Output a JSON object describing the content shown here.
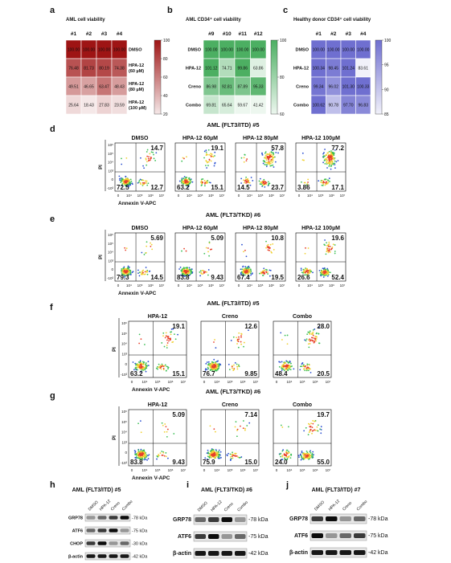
{
  "heatmaps": [
    {
      "letter": "a",
      "title": "AML  cell viability",
      "columns": [
        "#1",
        "#2",
        "#3",
        "#4"
      ],
      "row_labels": [
        [
          "DMSO"
        ],
        [
          "HPA-12",
          "(60 µM)"
        ],
        [
          "HPA-12",
          "(80 µM)"
        ],
        [
          "HPA-12",
          "(100 µM)"
        ]
      ],
      "cells": [
        [
          "100.00",
          "100.00",
          "100.00",
          "100.00"
        ],
        [
          "76.48",
          "81.73",
          "80.19",
          "74.38"
        ],
        [
          "49.51",
          "46.65",
          "63.47",
          "48.43"
        ],
        [
          "25.64",
          "18.43",
          "27.83",
          "23.59"
        ]
      ],
      "colorbar_ticks": [
        "100",
        "80",
        "60",
        "40",
        "20"
      ],
      "color": "#9e1414"
    },
    {
      "letter": "b",
      "title": "AML  CD34⁺ cell viability",
      "columns": [
        "#9",
        "#10",
        "#11",
        "#12"
      ],
      "row_labels": [
        [
          "DMSO"
        ],
        [
          "HPA-12"
        ],
        [
          "Creno"
        ],
        [
          "Combo"
        ]
      ],
      "cells": [
        [
          "100.00",
          "100.00",
          "100.00",
          "100.00"
        ],
        [
          "101.12",
          "74.71",
          "99.86",
          "63.86"
        ],
        [
          "86.98",
          "92.81",
          "87.89",
          "95.33"
        ],
        [
          "69.81",
          "65.64",
          "59.67",
          "41.42"
        ]
      ],
      "colorbar_ticks": [
        "100",
        "80",
        "60"
      ],
      "color": "#4caf62"
    },
    {
      "letter": "c",
      "title": "Healthy donor  CD34⁺ cell viability",
      "columns": [
        "#1",
        "#2",
        "#3",
        "#4"
      ],
      "row_labels": [
        [
          "DMSO"
        ],
        [
          "HPA-12"
        ],
        [
          "Creno"
        ],
        [
          "Combo"
        ]
      ],
      "cells": [
        [
          "100.00",
          "100.00",
          "100.00",
          "100.00"
        ],
        [
          "100.34",
          "98.45",
          "101.24",
          "83.61"
        ],
        [
          "99.34",
          "96.02",
          "101.30",
          "100.33"
        ],
        [
          "100.62",
          "90.78",
          "97.70",
          "96.83"
        ]
      ],
      "colorbar_ticks": [
        "100",
        "95",
        "90",
        "85"
      ],
      "color": "#6f6fd0"
    }
  ],
  "flow_panels": [
    {
      "letter": "d",
      "title": "AML (FLT3/ITD) #5",
      "y_label": "PI",
      "x_label": "Annexin V-APC",
      "y_ticks": [
        "10⁶",
        "10⁵",
        "10⁴",
        "10³",
        "0",
        "-10³"
      ],
      "x_ticks": [
        "0",
        "10⁴",
        "10⁵",
        "10⁶",
        "10⁷"
      ],
      "plots": [
        {
          "title": "DMSO",
          "upper_right": "14.7",
          "lower_left": "72.5",
          "lower_right": "12.7"
        },
        {
          "title": "HPA-12 60µM",
          "upper_right": "19.1",
          "lower_left": "63.2",
          "lower_right": "15.1"
        },
        {
          "title": "HPA-12 80µM",
          "upper_right": "57.8",
          "lower_left": "14.5",
          "lower_right": "23.7"
        },
        {
          "title": "HPA-12 100µM",
          "upper_right": "77.2",
          "lower_left": "3.86",
          "lower_right": "17.1"
        }
      ]
    },
    {
      "letter": "e",
      "title": "AML (FLT3/TKD) #6",
      "y_label": "PI",
      "x_label": "Annexin V-APC",
      "y_ticks": [
        "10⁶",
        "10⁵",
        "10⁴",
        "10³",
        "0",
        "-10³"
      ],
      "x_ticks": [
        "0",
        "10⁴",
        "10⁵",
        "10⁶",
        "10⁷"
      ],
      "plots": [
        {
          "title": "DMSO",
          "upper_right": "5.69",
          "lower_left": "79.3",
          "lower_right": "14.5"
        },
        {
          "title": "HPA-12 60µM",
          "upper_right": "5.09",
          "lower_left": "83.8",
          "lower_right": "9.43"
        },
        {
          "title": "HPA-12 80µM",
          "upper_right": "10.8",
          "lower_left": "67.4",
          "lower_right": "19.5"
        },
        {
          "title": "HPA-12 100µM",
          "upper_right": "19.6",
          "lower_left": "26.6",
          "lower_right": "52.4"
        }
      ]
    },
    {
      "letter": "f",
      "title": "AML (FLT3/ITD) #5",
      "y_label": "PI",
      "x_label": "Annexin V-APC",
      "y_ticks": [
        "10⁶",
        "10⁵",
        "10⁴",
        "10³",
        "0",
        "-10³"
      ],
      "x_ticks": [
        "0",
        "10⁴",
        "10⁵",
        "10⁶",
        "10⁷"
      ],
      "plots": [
        {
          "title": "HPA-12",
          "upper_right": "19.1",
          "lower_left": "63.2",
          "lower_right": "15.1"
        },
        {
          "title": "Creno",
          "upper_right": "12.6",
          "lower_left": "76.7",
          "lower_right": "9.85"
        },
        {
          "title": "Combo",
          "upper_right": "28.0",
          "lower_left": "48.4",
          "lower_right": "20.5"
        }
      ]
    },
    {
      "letter": "g",
      "title": "AML (FLT3/TKD) #6",
      "y_label": "PI",
      "x_label": "Annexin V-APC",
      "y_ticks": [
        "10⁶",
        "10⁵",
        "10⁴",
        "10³",
        "0",
        "-10³"
      ],
      "x_ticks": [
        "0",
        "10⁴",
        "10⁵",
        "10⁶",
        "10⁷"
      ],
      "plots": [
        {
          "title": "HPA-12",
          "upper_right": "5.09",
          "lower_left": "83.8",
          "lower_right": "9.43"
        },
        {
          "title": "Creno",
          "upper_right": "7.14",
          "lower_left": "75.9",
          "lower_right": "15.0"
        },
        {
          "title": "Combo",
          "upper_right": "19.7",
          "lower_left": "24.0",
          "lower_right": "55.0"
        }
      ]
    }
  ],
  "blots": [
    {
      "letter": "h",
      "title": "AML (FLT3/ITD) #5",
      "lanes": [
        "DMSO",
        "HPA-12",
        "Creno",
        "Combo"
      ],
      "rows": [
        {
          "protein": "GRP78",
          "size": "-78 kDa"
        },
        {
          "protein": "ATF6",
          "size": "-75 kDa"
        },
        {
          "protein": "CHOP",
          "size": "-30 kDa"
        },
        {
          "protein": "β-actin",
          "size": "-42 kDa"
        }
      ]
    },
    {
      "letter": "i",
      "title": "AML (FLT3/TKD) #6",
      "lanes": [
        "DMSO",
        "HPA-12",
        "Creno",
        "Combo"
      ],
      "rows": [
        {
          "protein": "GRP78",
          "size": "-78 kDa"
        },
        {
          "protein": "ATF6",
          "size": "-75 kDa"
        },
        {
          "protein": "β-actin",
          "size": "-42 kDa"
        }
      ]
    },
    {
      "letter": "j",
      "title": "AML (FLT3/ITD) #7",
      "lanes": [
        "DMSO",
        "HPA-12",
        "Creno",
        "Combo"
      ],
      "rows": [
        {
          "protein": "GRP78",
          "size": "-78 kDa"
        },
        {
          "protein": "ATF6",
          "size": "-75 kDa"
        },
        {
          "protein": "β-actin",
          "size": "-42 kDa"
        }
      ]
    }
  ]
}
